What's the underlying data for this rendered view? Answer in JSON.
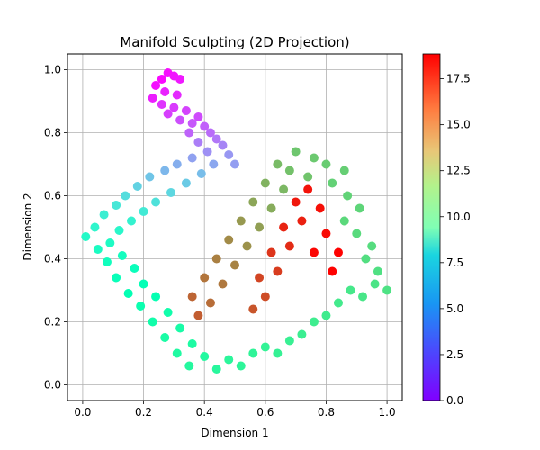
{
  "chart_data": {
    "type": "scatter",
    "title": "Manifold Sculpting (2D Projection)",
    "xlabel": "Dimension 1",
    "ylabel": "Dimension 2",
    "xlim": [
      -0.05,
      1.05
    ],
    "ylim": [
      -0.05,
      1.05
    ],
    "xticks": [
      0.0,
      0.2,
      0.4,
      0.6,
      0.8,
      1.0
    ],
    "xtick_labels": [
      "0.0",
      "0.2",
      "0.4",
      "0.6",
      "0.8",
      "1.0"
    ],
    "yticks": [
      0.0,
      0.2,
      0.4,
      0.6,
      0.8,
      1.0
    ],
    "ytick_labels": [
      "0.0",
      "0.2",
      "0.4",
      "0.6",
      "0.8",
      "1.0"
    ],
    "grid": true,
    "colormap": "rainbow",
    "colorbar": {
      "range": [
        0,
        18.85
      ],
      "ticks": [
        0.0,
        2.5,
        5.0,
        7.5,
        10.0,
        12.5,
        15.0,
        17.5
      ],
      "tick_labels": [
        "0.0",
        "2.5",
        "5.0",
        "7.5",
        "10.0",
        "12.5",
        "15.0",
        "17.5"
      ]
    },
    "points": [
      [
        0.28,
        0.99,
        0.3
      ],
      [
        0.3,
        0.98,
        0.5
      ],
      [
        0.26,
        0.97,
        0.2
      ],
      [
        0.32,
        0.97,
        0.6
      ],
      [
        0.24,
        0.95,
        0.4
      ],
      [
        0.27,
        0.93,
        0.8
      ],
      [
        0.31,
        0.92,
        1.0
      ],
      [
        0.23,
        0.91,
        0.7
      ],
      [
        0.26,
        0.89,
        1.2
      ],
      [
        0.3,
        0.88,
        1.4
      ],
      [
        0.34,
        0.87,
        1.6
      ],
      [
        0.28,
        0.86,
        1.5
      ],
      [
        0.32,
        0.84,
        1.9
      ],
      [
        0.36,
        0.83,
        2.1
      ],
      [
        0.38,
        0.85,
        1.8
      ],
      [
        0.4,
        0.82,
        2.3
      ],
      [
        0.42,
        0.8,
        2.6
      ],
      [
        0.35,
        0.8,
        2.4
      ],
      [
        0.44,
        0.78,
        2.9
      ],
      [
        0.38,
        0.77,
        3.1
      ],
      [
        0.46,
        0.76,
        3.3
      ],
      [
        0.41,
        0.74,
        3.6
      ],
      [
        0.48,
        0.73,
        3.8
      ],
      [
        0.36,
        0.72,
        4.1
      ],
      [
        0.43,
        0.7,
        4.3
      ],
      [
        0.31,
        0.7,
        4.5
      ],
      [
        0.5,
        0.7,
        4.0
      ],
      [
        0.27,
        0.68,
        4.8
      ],
      [
        0.39,
        0.67,
        5.0
      ],
      [
        0.22,
        0.66,
        5.3
      ],
      [
        0.34,
        0.64,
        5.5
      ],
      [
        0.18,
        0.63,
        5.8
      ],
      [
        0.29,
        0.61,
        6.0
      ],
      [
        0.14,
        0.6,
        6.3
      ],
      [
        0.24,
        0.58,
        6.5
      ],
      [
        0.11,
        0.57,
        6.8
      ],
      [
        0.2,
        0.55,
        7.0
      ],
      [
        0.07,
        0.54,
        7.2
      ],
      [
        0.16,
        0.52,
        7.5
      ],
      [
        0.04,
        0.5,
        7.7
      ],
      [
        0.12,
        0.49,
        7.9
      ],
      [
        0.01,
        0.47,
        8.1
      ],
      [
        0.09,
        0.45,
        8.3
      ],
      [
        0.05,
        0.43,
        8.5
      ],
      [
        0.13,
        0.41,
        8.7
      ],
      [
        0.08,
        0.39,
        8.8
      ],
      [
        0.17,
        0.37,
        9.0
      ],
      [
        0.11,
        0.34,
        9.1
      ],
      [
        0.2,
        0.32,
        9.3
      ],
      [
        0.15,
        0.29,
        9.5
      ],
      [
        0.24,
        0.28,
        9.6
      ],
      [
        0.19,
        0.25,
        9.8
      ],
      [
        0.28,
        0.23,
        10.0
      ],
      [
        0.23,
        0.2,
        10.1
      ],
      [
        0.32,
        0.18,
        10.3
      ],
      [
        0.27,
        0.15,
        10.4
      ],
      [
        0.36,
        0.13,
        10.5
      ],
      [
        0.31,
        0.1,
        10.6
      ],
      [
        0.4,
        0.09,
        10.7
      ],
      [
        0.35,
        0.06,
        10.8
      ],
      [
        0.44,
        0.05,
        10.9
      ],
      [
        0.48,
        0.08,
        11.0
      ],
      [
        0.52,
        0.06,
        11.1
      ],
      [
        0.56,
        0.1,
        11.2
      ],
      [
        0.6,
        0.12,
        11.3
      ],
      [
        0.64,
        0.1,
        11.4
      ],
      [
        0.68,
        0.14,
        11.5
      ],
      [
        0.72,
        0.16,
        11.6
      ],
      [
        0.76,
        0.2,
        11.7
      ],
      [
        0.8,
        0.22,
        11.8
      ],
      [
        0.84,
        0.26,
        11.9
      ],
      [
        0.88,
        0.3,
        12.0
      ],
      [
        0.92,
        0.28,
        12.1
      ],
      [
        0.96,
        0.32,
        12.2
      ],
      [
        1.0,
        0.3,
        12.3
      ],
      [
        0.97,
        0.36,
        12.4
      ],
      [
        0.93,
        0.4,
        12.5
      ],
      [
        0.95,
        0.44,
        12.6
      ],
      [
        0.9,
        0.48,
        12.7
      ],
      [
        0.86,
        0.52,
        12.8
      ],
      [
        0.91,
        0.56,
        12.9
      ],
      [
        0.87,
        0.6,
        13.0
      ],
      [
        0.82,
        0.64,
        13.1
      ],
      [
        0.86,
        0.68,
        13.2
      ],
      [
        0.8,
        0.7,
        13.3
      ],
      [
        0.76,
        0.72,
        13.4
      ],
      [
        0.7,
        0.74,
        13.5
      ],
      [
        0.74,
        0.66,
        13.6
      ],
      [
        0.68,
        0.68,
        13.7
      ],
      [
        0.64,
        0.7,
        13.9
      ],
      [
        0.66,
        0.62,
        14.0
      ],
      [
        0.6,
        0.64,
        14.2
      ],
      [
        0.62,
        0.56,
        14.4
      ],
      [
        0.56,
        0.58,
        14.6
      ],
      [
        0.58,
        0.5,
        14.8
      ],
      [
        0.52,
        0.52,
        15.0
      ],
      [
        0.54,
        0.44,
        15.2
      ],
      [
        0.48,
        0.46,
        15.4
      ],
      [
        0.5,
        0.38,
        15.6
      ],
      [
        0.44,
        0.4,
        15.7
      ],
      [
        0.46,
        0.32,
        15.9
      ],
      [
        0.4,
        0.34,
        16.0
      ],
      [
        0.42,
        0.26,
        16.2
      ],
      [
        0.36,
        0.28,
        16.4
      ],
      [
        0.38,
        0.22,
        16.6
      ],
      [
        0.56,
        0.24,
        16.8
      ],
      [
        0.6,
        0.28,
        17.0
      ],
      [
        0.58,
        0.34,
        17.2
      ],
      [
        0.64,
        0.36,
        17.4
      ],
      [
        0.62,
        0.42,
        17.6
      ],
      [
        0.68,
        0.44,
        17.8
      ],
      [
        0.66,
        0.5,
        18.0
      ],
      [
        0.72,
        0.52,
        18.1
      ],
      [
        0.7,
        0.58,
        18.3
      ],
      [
        0.74,
        0.62,
        18.4
      ],
      [
        0.78,
        0.56,
        18.5
      ],
      [
        0.8,
        0.48,
        18.6
      ],
      [
        0.76,
        0.42,
        18.7
      ],
      [
        0.82,
        0.36,
        18.8
      ],
      [
        0.84,
        0.42,
        18.8
      ]
    ]
  }
}
